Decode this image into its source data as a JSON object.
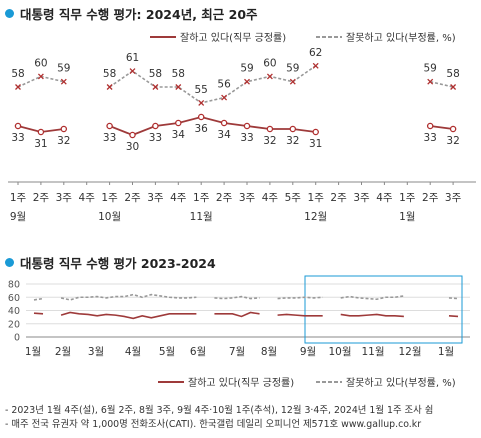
{
  "colors": {
    "approve": "#9e3a3a",
    "disapprove": "#999999",
    "marker": "#b03030",
    "accent": "#1a9ad6"
  },
  "top": {
    "title": "대통령 직무 수행 평가: 2024년, 최근 20주",
    "legend": {
      "approve": "잘하고 있다(직무 긍정률)",
      "disapprove": "잘못하고 있다(부정률, %)"
    }
  },
  "bottom": {
    "title": "대통령 직무 수행 평가 2023-2024",
    "legend": {
      "approve": "잘하고 있다(직무 긍정률)",
      "disapprove": "잘못하고 있다(부정률, %)"
    }
  },
  "notes": [
    "- 2023년 1월 4주(설), 6월 2주, 8월 3주, 9월 4주·10월 1주(추석), 12월 3·4주, 2024년 1월 1주 조사 쉼",
    "- 매주 전국 유권자 약 1,000명 전화조사(CATI). 한국갤럽 데일리 오피니언 제571호 www.gallup.co.kr"
  ],
  "chart_data": [
    {
      "type": "line",
      "categories": [
        "1주",
        "2주",
        "3주",
        "4주",
        "1주",
        "2주",
        "3주",
        "4주",
        "1주",
        "2주",
        "3주",
        "4주",
        "5주",
        "1주",
        "2주",
        "3주",
        "4주",
        "1주",
        "2주",
        "3주"
      ],
      "month_labels": [
        {
          "label": "9월",
          "index": 0
        },
        {
          "label": "10월",
          "index": 4
        },
        {
          "label": "11월",
          "index": 8
        },
        {
          "label": "12월",
          "index": 13
        },
        {
          "label": "1월",
          "index": 17
        }
      ],
      "series": [
        {
          "name": "잘하고 있다(직무 긍정률)",
          "values": [
            33,
            31,
            32,
            null,
            33,
            30,
            33,
            34,
            36,
            34,
            33,
            32,
            32,
            31,
            null,
            null,
            null,
            null,
            33,
            32
          ]
        },
        {
          "name": "잘못하고 있다(부정률, %)",
          "values": [
            58,
            60,
            59,
            null,
            58,
            61,
            58,
            58,
            55,
            56,
            59,
            60,
            59,
            62,
            null,
            null,
            null,
            null,
            59,
            58
          ]
        }
      ],
      "legend": "top-right"
    },
    {
      "type": "line",
      "months": [
        "1월",
        "2월",
        "3월",
        "4월",
        "5월",
        "6월",
        "7월",
        "8월",
        "9월",
        "10월",
        "11월",
        "12월",
        "1월"
      ],
      "yticks": [
        0,
        20,
        40,
        60,
        80
      ],
      "ylim": [
        0,
        80
      ],
      "grid": true,
      "highlight": "최근 20주",
      "series": [
        {
          "name": "잘하고 있다(직무 긍정률)",
          "values": [
            36,
            35,
            null,
            33,
            37,
            35,
            34,
            32,
            34,
            33,
            31,
            28,
            32,
            29,
            32,
            35,
            35,
            35,
            35,
            null,
            35,
            35,
            35,
            31,
            37,
            35,
            null,
            33,
            34,
            33,
            32,
            32,
            32,
            null,
            34,
            32,
            32,
            33,
            34,
            32,
            32,
            31,
            null,
            null,
            null,
            null,
            32,
            31
          ]
        },
        {
          "name": "잘못하고 있다(부정률, %)",
          "values": [
            56,
            58,
            null,
            59,
            56,
            60,
            60,
            61,
            59,
            61,
            61,
            64,
            60,
            64,
            62,
            60,
            59,
            59,
            60,
            null,
            59,
            58,
            59,
            61,
            58,
            59,
            null,
            58,
            59,
            59,
            60,
            59,
            60,
            null,
            59,
            61,
            59,
            58,
            57,
            60,
            60,
            62,
            null,
            null,
            null,
            null,
            59,
            58
          ]
        }
      ],
      "legend": "bottom-right"
    }
  ]
}
